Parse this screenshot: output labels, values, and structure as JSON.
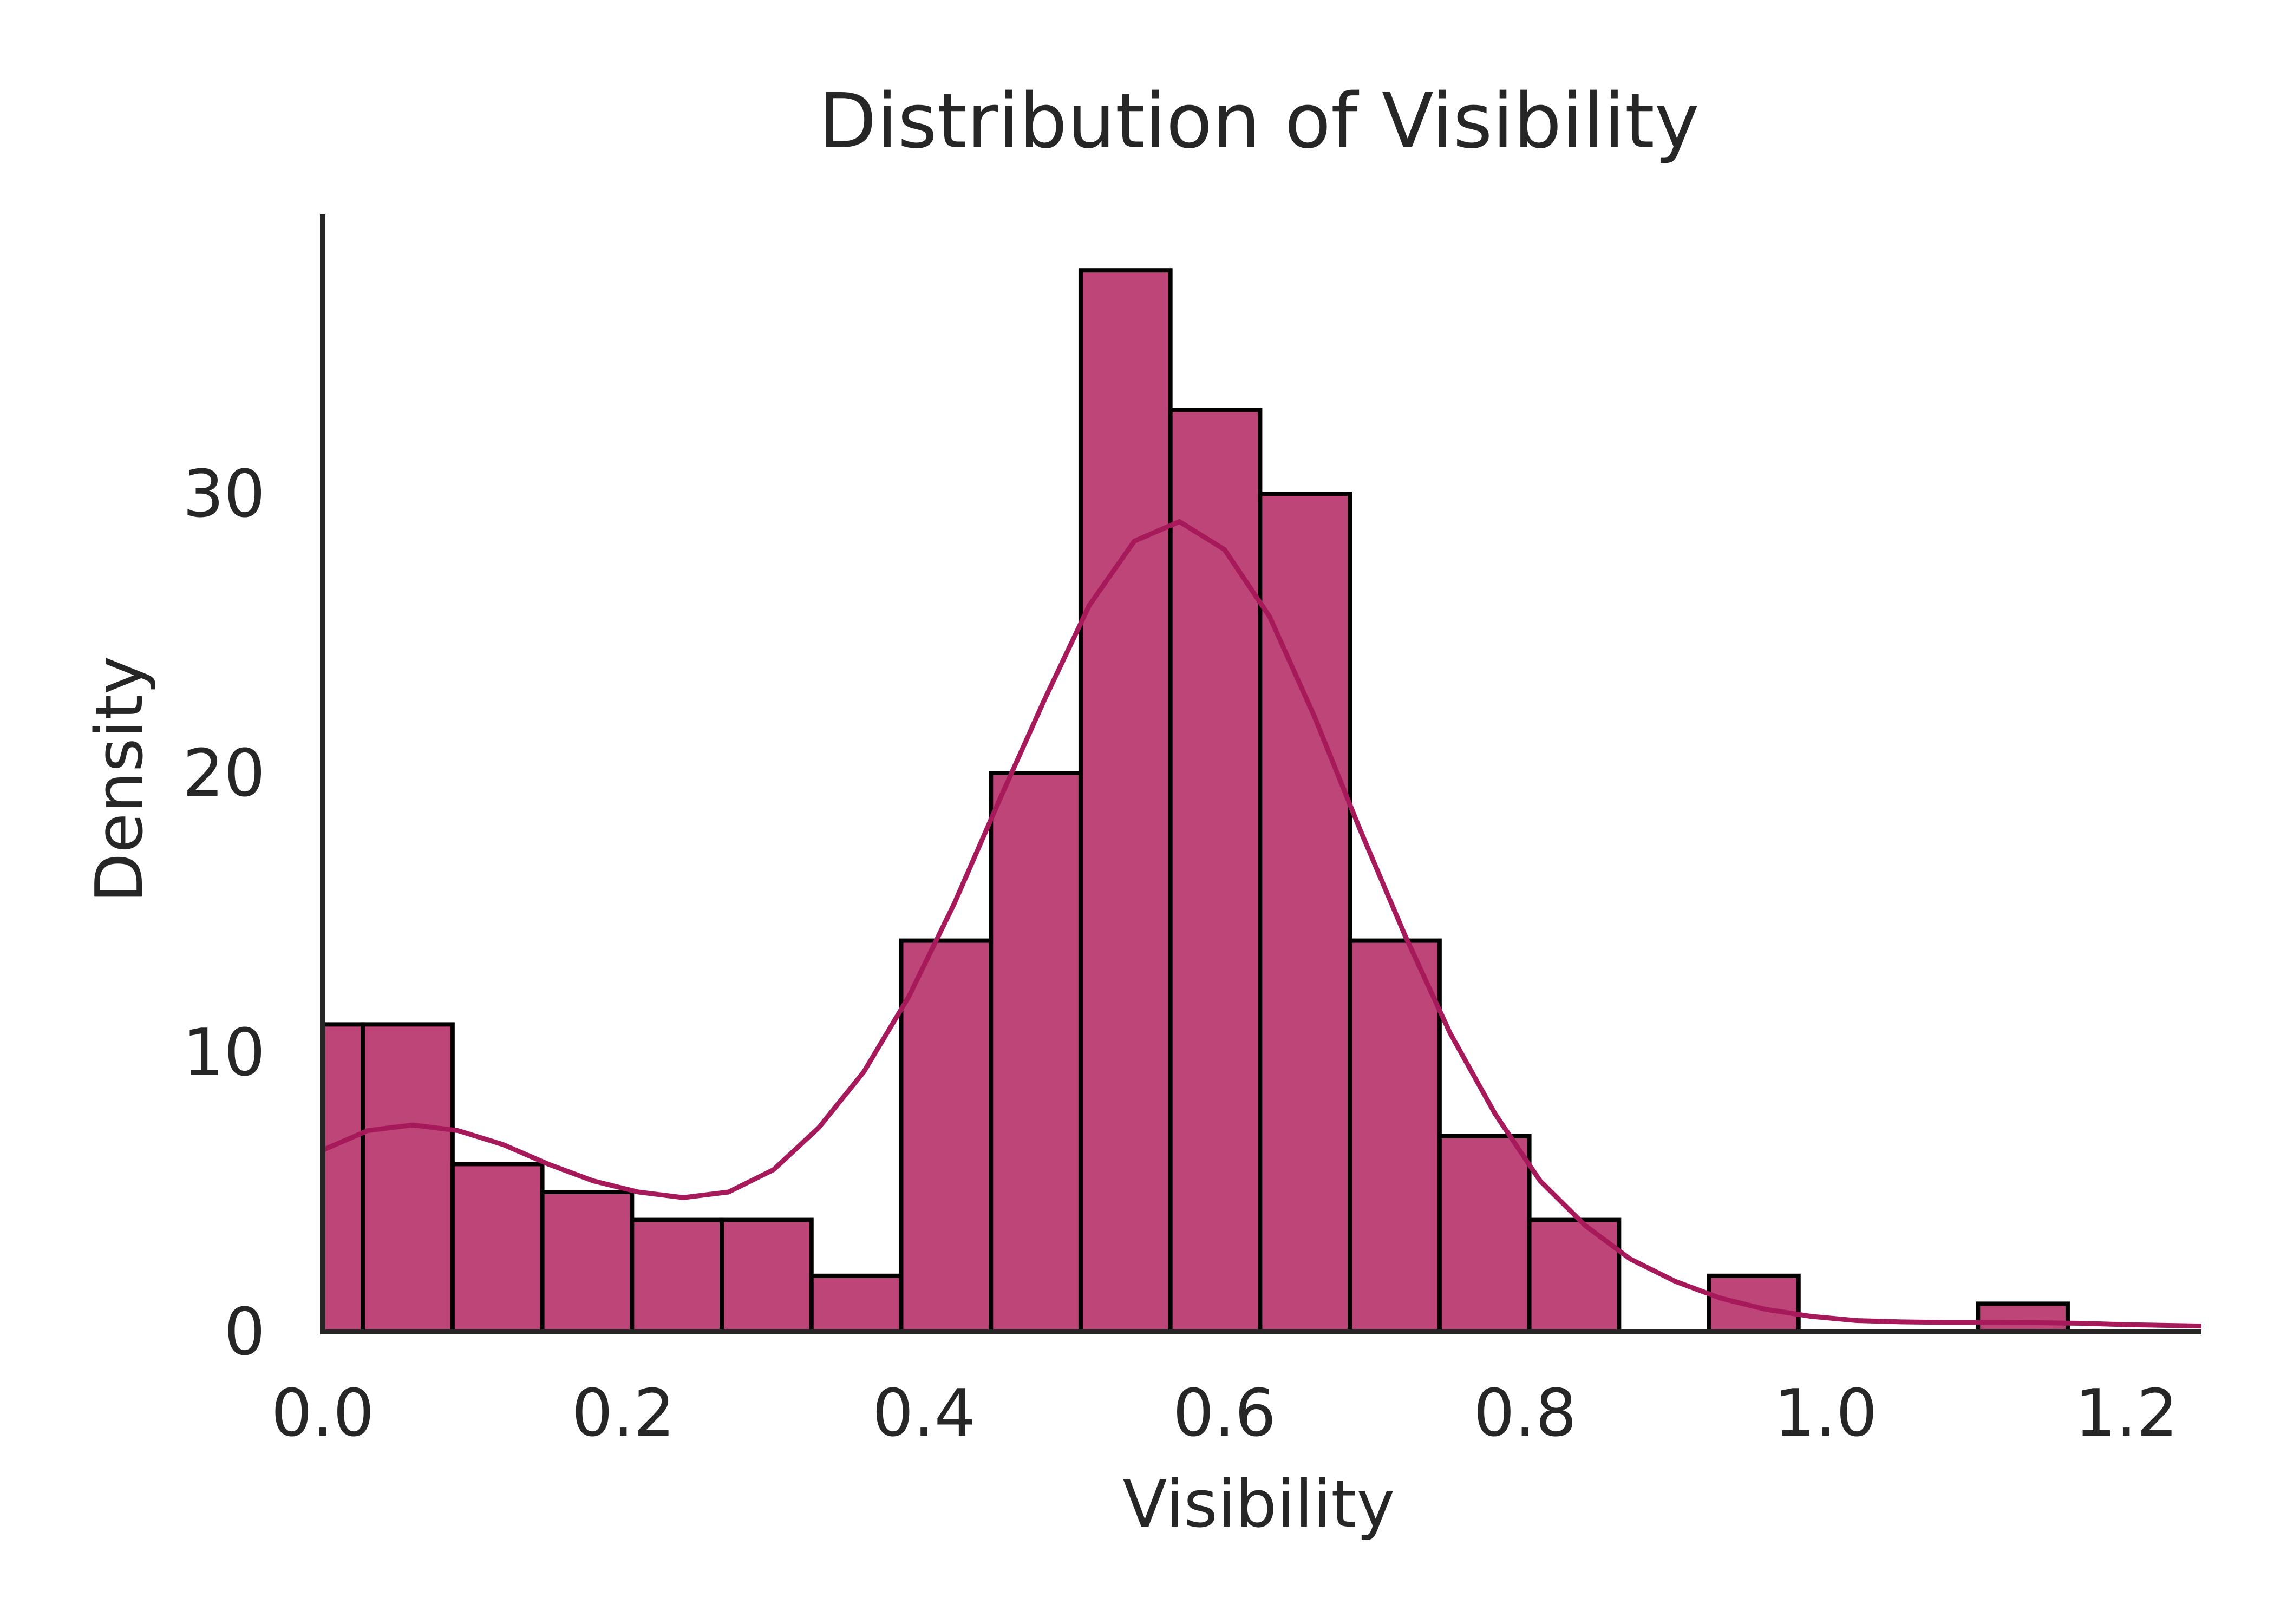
{
  "chart_data": {
    "type": "histogram",
    "title": "Distribution of Visibility",
    "xlabel": "Visibility",
    "ylabel": "Density",
    "xlim": [
      0.0,
      1.25
    ],
    "ylim": [
      0,
      40
    ],
    "xticks": [
      0.0,
      0.2,
      0.4,
      0.6,
      0.8,
      1.0,
      1.2
    ],
    "xtick_labels": [
      "0.0",
      "0.2",
      "0.4",
      "0.6",
      "0.8",
      "1.0",
      "1.2"
    ],
    "yticks": [
      0,
      10,
      20,
      30
    ],
    "ytick_labels": [
      "0",
      "10",
      "20",
      "30"
    ],
    "bins": [
      {
        "x0": 0.0,
        "x1": 0.0267,
        "value": 11
      },
      {
        "x0": 0.0267,
        "x1": 0.0864,
        "value": 11
      },
      {
        "x0": 0.0864,
        "x1": 0.1461,
        "value": 6
      },
      {
        "x0": 0.1461,
        "x1": 0.2058,
        "value": 5
      },
      {
        "x0": 0.2058,
        "x1": 0.2655,
        "value": 4
      },
      {
        "x0": 0.2655,
        "x1": 0.3252,
        "value": 4
      },
      {
        "x0": 0.3252,
        "x1": 0.3849,
        "value": 2
      },
      {
        "x0": 0.3849,
        "x1": 0.4446,
        "value": 14
      },
      {
        "x0": 0.4446,
        "x1": 0.5043,
        "value": 20
      },
      {
        "x0": 0.5043,
        "x1": 0.564,
        "value": 38
      },
      {
        "x0": 0.564,
        "x1": 0.6237,
        "value": 33
      },
      {
        "x0": 0.6237,
        "x1": 0.6834,
        "value": 30
      },
      {
        "x0": 0.6834,
        "x1": 0.7431,
        "value": 14
      },
      {
        "x0": 0.7431,
        "x1": 0.8028,
        "value": 7
      },
      {
        "x0": 0.8028,
        "x1": 0.8625,
        "value": 4
      },
      {
        "x0": 0.8625,
        "x1": 0.9222,
        "value": 0
      },
      {
        "x0": 0.9222,
        "x1": 0.9819,
        "value": 2
      },
      {
        "x0": 0.9819,
        "x1": 1.0416,
        "value": 0
      },
      {
        "x0": 1.0416,
        "x1": 1.1013,
        "value": 0
      },
      {
        "x0": 1.1013,
        "x1": 1.161,
        "value": 1
      }
    ],
    "kde": {
      "x": [
        0.0,
        0.03,
        0.06,
        0.09,
        0.12,
        0.15,
        0.18,
        0.21,
        0.24,
        0.27,
        0.3,
        0.33,
        0.36,
        0.39,
        0.42,
        0.45,
        0.48,
        0.51,
        0.54,
        0.57,
        0.6,
        0.63,
        0.66,
        0.69,
        0.72,
        0.75,
        0.78,
        0.81,
        0.84,
        0.87,
        0.9,
        0.93,
        0.96,
        0.99,
        1.02,
        1.05,
        1.08,
        1.11,
        1.14,
        1.17,
        1.2,
        1.25
      ],
      "y": [
        6.5,
        7.2,
        7.4,
        7.2,
        6.7,
        6.0,
        5.4,
        5.0,
        4.8,
        5.0,
        5.8,
        7.3,
        9.3,
        12.0,
        15.3,
        19.0,
        22.6,
        26.0,
        28.3,
        29.0,
        28.0,
        25.6,
        22.0,
        18.0,
        14.2,
        10.7,
        7.8,
        5.4,
        3.8,
        2.6,
        1.8,
        1.2,
        0.8,
        0.55,
        0.4,
        0.35,
        0.33,
        0.33,
        0.32,
        0.3,
        0.25,
        0.2
      ]
    },
    "bar_color": "#be4578",
    "kde_color": "#a6195a",
    "edge_color": "#000000",
    "axis_color": "#262626"
  }
}
